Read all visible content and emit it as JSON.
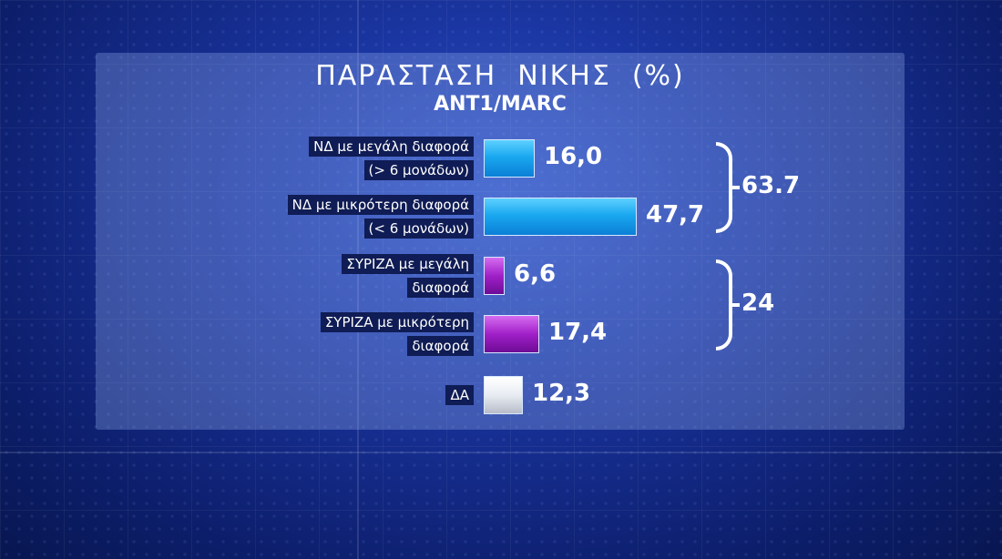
{
  "chart_data": {
    "type": "bar",
    "orientation": "horizontal",
    "title": "ΠΑΡΑΣΤΑΣΗ  ΝΙΚΗΣ  (%)",
    "subtitle": "ANT1/MARC",
    "categories": [
      [
        "ΝΔ με μεγάλη διαφορά",
        "(> 6 μονάδων)"
      ],
      [
        "ΝΔ με μικρότερη διαφορά",
        "(< 6 μονάδων)"
      ],
      [
        "ΣΥΡΙΖΑ με μεγάλη",
        "διαφορά"
      ],
      [
        "ΣΥΡΙΖΑ με μικρότερη",
        "διαφορά"
      ],
      [
        "ΔΑ"
      ]
    ],
    "values": [
      16.0,
      47.7,
      6.6,
      17.4,
      12.3
    ],
    "value_labels": [
      "16,0",
      "47,7",
      "6,6",
      "17,4",
      "12,3"
    ],
    "colors": [
      "#1aa8f0",
      "#1aa8f0",
      "#a020c8",
      "#a020c8",
      "#e8ecf2"
    ],
    "xlim": [
      0,
      50
    ],
    "grid": false,
    "legend": "none",
    "groups": [
      {
        "total_label": "63.7",
        "members": [
          0,
          1
        ]
      },
      {
        "total_label": "24",
        "members": [
          2,
          3
        ]
      }
    ]
  }
}
